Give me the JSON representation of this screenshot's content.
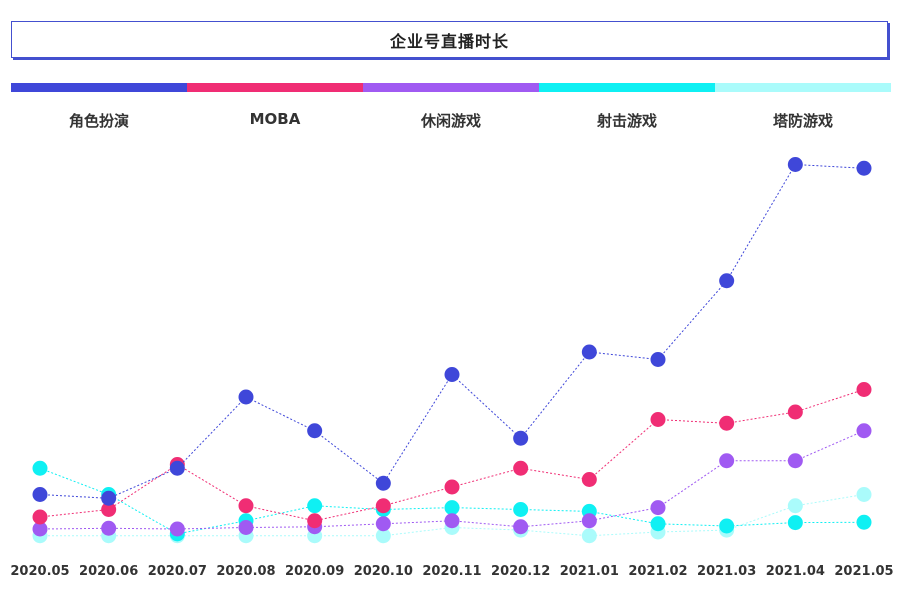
{
  "chart_data": {
    "type": "line",
    "title": "企业号直播时长",
    "categories": [
      "2020.05",
      "2020.06",
      "2020.07",
      "2020.08",
      "2020.09",
      "2020.10",
      "2020.11",
      "2020.12",
      "2021.01",
      "2021.02",
      "2021.03",
      "2021.04",
      "2021.05"
    ],
    "ylim": [
      0,
      100
    ],
    "xlabel": "",
    "ylabel": "",
    "series": [
      {
        "name": "角色扮演",
        "color": "#3f47d9",
        "values": [
          10,
          9,
          17,
          36,
          27,
          13,
          42,
          25,
          48,
          46,
          67,
          98,
          97
        ]
      },
      {
        "name": "MOBA",
        "color": "#f02d74",
        "values": [
          4,
          6,
          18,
          7,
          3,
          7,
          12,
          17,
          14,
          30,
          29,
          32,
          38
        ]
      },
      {
        "name": "休闲游戏",
        "color": "#a05af2",
        "values": [
          0.8,
          1,
          0.8,
          1.2,
          1.4,
          2.2,
          3,
          1.4,
          3,
          6.5,
          19,
          19,
          27
        ]
      },
      {
        "name": "射击游戏",
        "color": "#0ff0f3",
        "values": [
          17,
          10,
          -0.5,
          3,
          7,
          6,
          6.5,
          6,
          5.5,
          2.2,
          1.6,
          2.5,
          2.6
        ]
      },
      {
        "name": "塔防游戏",
        "color": "#aafbfb",
        "values": [
          -1,
          -1,
          -1,
          -1,
          -1,
          -1,
          1.2,
          0.5,
          -1,
          0,
          0.5,
          7,
          10
        ]
      }
    ],
    "grid": false,
    "legend": "top"
  }
}
